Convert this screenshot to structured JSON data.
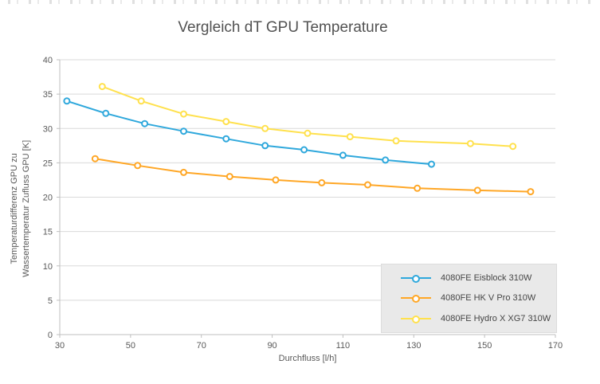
{
  "chart_data": {
    "type": "line",
    "title": "Vergleich dT GPU Temperature",
    "xlabel": "Durchfluss [l/h]",
    "ylabel": "Temperaturdifferenz GPU zu\nWassertemperatur Zufluss GPU  [K]",
    "xlim": [
      30,
      170
    ],
    "ylim": [
      0,
      40
    ],
    "xticks": [
      30,
      50,
      70,
      90,
      110,
      130,
      150,
      170
    ],
    "yticks": [
      0,
      5,
      10,
      15,
      20,
      25,
      30,
      35,
      40
    ],
    "grid": "horizontal",
    "legend_position": "bottom-right",
    "colors": {
      "grid": "#d9d9d9",
      "axis": "#bfbfbf",
      "tick_text": "#595959"
    },
    "series": [
      {
        "name": "4080FE Eisblock 310W",
        "color": "#2fa8dc",
        "points": [
          [
            32,
            34.0
          ],
          [
            43,
            32.2
          ],
          [
            54,
            30.7
          ],
          [
            65,
            29.6
          ],
          [
            77,
            28.5
          ],
          [
            88,
            27.5
          ],
          [
            99,
            26.9
          ],
          [
            110,
            26.1
          ],
          [
            122,
            25.4
          ],
          [
            135,
            24.8
          ]
        ]
      },
      {
        "name": "4080FE HK V Pro 310W",
        "color": "#ffa726",
        "points": [
          [
            40,
            25.6
          ],
          [
            52,
            24.6
          ],
          [
            65,
            23.6
          ],
          [
            78,
            23.0
          ],
          [
            91,
            22.5
          ],
          [
            104,
            22.1
          ],
          [
            117,
            21.8
          ],
          [
            131,
            21.3
          ],
          [
            148,
            21.0
          ],
          [
            163,
            20.8
          ]
        ]
      },
      {
        "name": "4080FE Hydro X XG7 310W",
        "color": "#ffe14d",
        "points": [
          [
            42,
            36.1
          ],
          [
            53,
            34.0
          ],
          [
            65,
            32.1
          ],
          [
            77,
            31.0
          ],
          [
            88,
            30.0
          ],
          [
            100,
            29.3
          ],
          [
            112,
            28.8
          ],
          [
            125,
            28.2
          ],
          [
            146,
            27.8
          ],
          [
            158,
            27.4
          ]
        ]
      }
    ]
  }
}
